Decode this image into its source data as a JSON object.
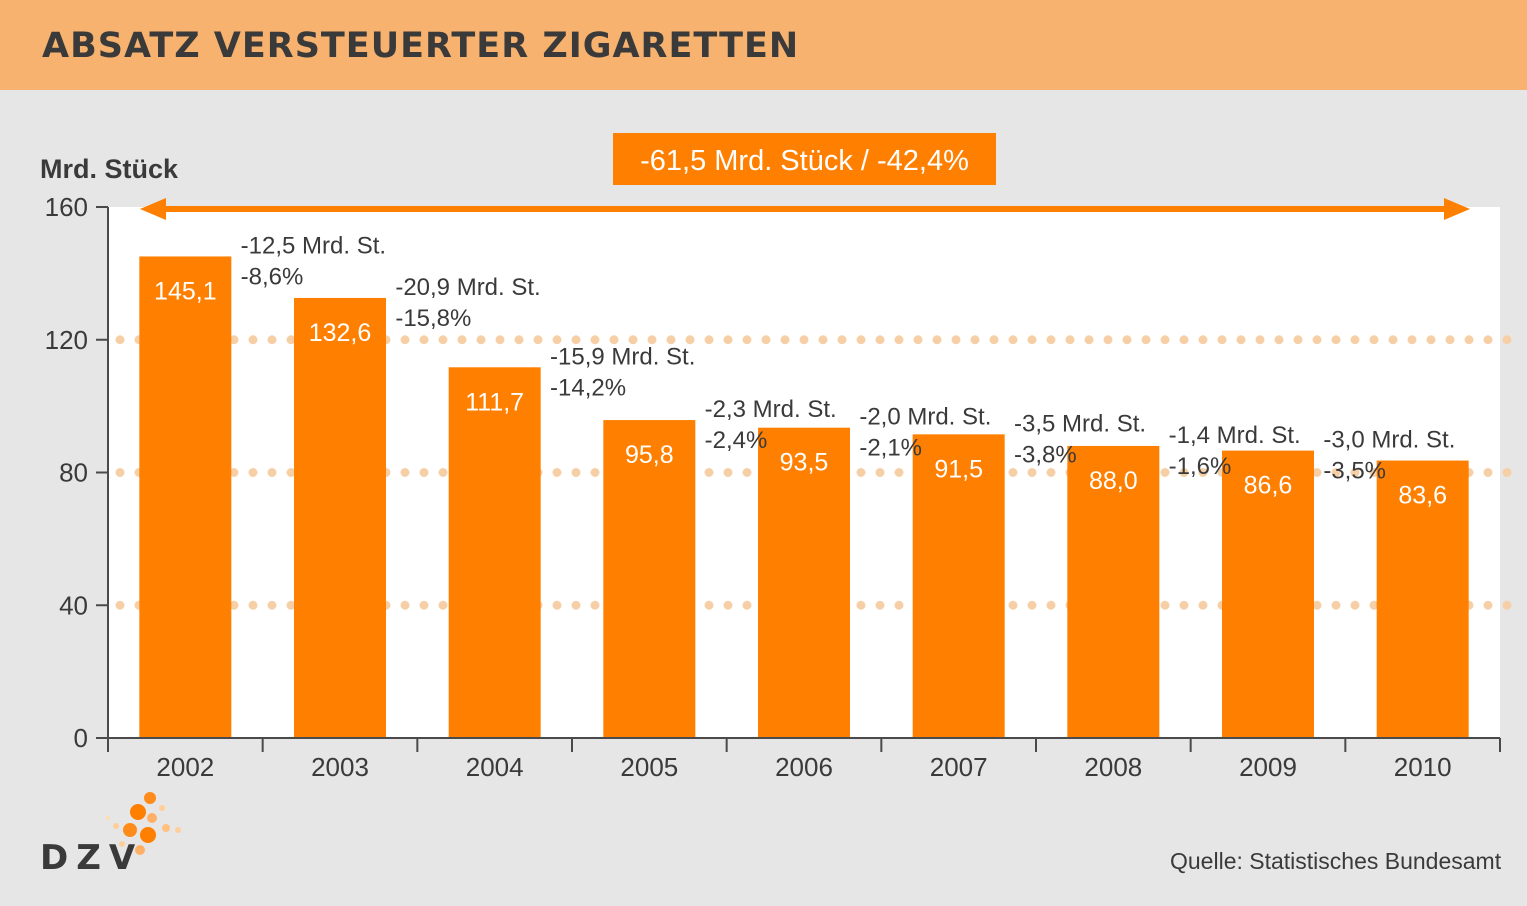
{
  "title": "ABSATZ VERSTEUERTER ZIGARETTEN",
  "source": "Quelle: Statistisches Bundesamt",
  "logo": "DZV",
  "colors": {
    "bar": "#ff7f00",
    "header": "#f6b26e",
    "background": "#e6e6e6",
    "plot": "#ffffff",
    "grid_dots": "#f7cfa6",
    "text": "#3a3a3a"
  },
  "chart_data": {
    "type": "bar",
    "ylabel": "Mrd. Stück",
    "ylim": [
      0,
      160
    ],
    "yticks": [
      "0",
      "40",
      "80",
      "120",
      "160"
    ],
    "grid": "dotted",
    "categories": [
      "2002",
      "2003",
      "2004",
      "2005",
      "2006",
      "2007",
      "2008",
      "2009",
      "2010"
    ],
    "values": [
      145.1,
      132.6,
      111.7,
      95.8,
      93.5,
      91.5,
      88.0,
      86.6,
      83.6
    ],
    "value_labels": [
      "145,1",
      "132,6",
      "111,7",
      "95,8",
      "93,5",
      "91,5",
      "88,0",
      "86,6",
      "83,6"
    ],
    "annotations": [
      {
        "after": "2002",
        "abs": "-12,5 Mrd. St.",
        "pct": "-8,6%"
      },
      {
        "after": "2003",
        "abs": "-20,9 Mrd. St.",
        "pct": "-15,8%"
      },
      {
        "after": "2004",
        "abs": "-15,9 Mrd. St.",
        "pct": "-14,2%"
      },
      {
        "after": "2005",
        "abs": "-2,3 Mrd. St.",
        "pct": "-2,4%"
      },
      {
        "after": "2006",
        "abs": "-2,0 Mrd. St.",
        "pct": "-2,1%"
      },
      {
        "after": "2007",
        "abs": "-3,5 Mrd. St.",
        "pct": "-3,8%"
      },
      {
        "after": "2008",
        "abs": "-1,4 Mrd. St.",
        "pct": "-1,6%"
      },
      {
        "after": "2009",
        "abs": "-3,0 Mrd. St.",
        "pct": "-3,5%"
      }
    ],
    "total_change": "-61,5 Mrd. Stück / -42,4%"
  }
}
